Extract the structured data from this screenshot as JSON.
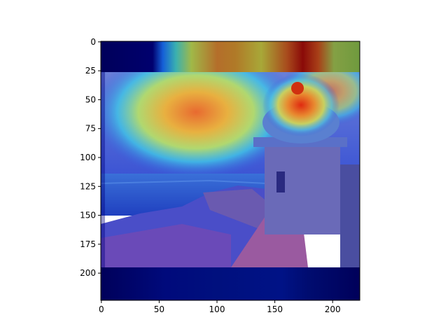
{
  "plot": {
    "x_ticks": [
      "0",
      "50",
      "100",
      "150",
      "200"
    ],
    "y_ticks": [
      "0",
      "25",
      "50",
      "75",
      "100",
      "125",
      "150",
      "175",
      "200"
    ]
  },
  "chart_data": {
    "type": "heatmap",
    "title": "",
    "xlabel": "",
    "ylabel": "",
    "xlim": [
      0,
      224
    ],
    "ylim": [
      224,
      0
    ],
    "x_ticks": [
      0,
      50,
      100,
      150,
      200
    ],
    "y_ticks": [
      0,
      25,
      50,
      75,
      100,
      125,
      150,
      175,
      200
    ],
    "colormap": "jet",
    "background": "painting of coastal fortress sentry box (garita) overlooking the sea",
    "colors": {
      "low": "#00007f",
      "mid": "#22d3ee",
      "high": "#b80000",
      "sky": "#6a8fd8",
      "sea": "#3a5fc0",
      "stone": "#7a6aa8"
    }
  }
}
